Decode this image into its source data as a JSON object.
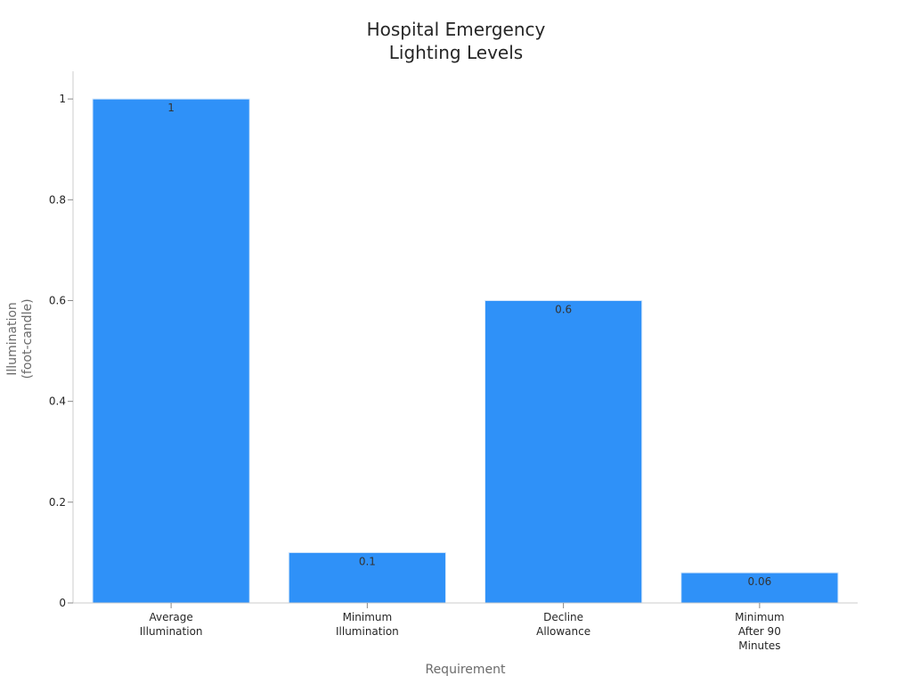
{
  "chart_data": {
    "type": "bar",
    "title_lines": [
      "Hospital Emergency",
      "Lighting Levels"
    ],
    "xlabel": "Requirement",
    "ylabel_lines": [
      "Illumination",
      "(foot-candle)"
    ],
    "categories": [
      [
        "Average",
        "Illumination"
      ],
      [
        "Minimum",
        "Illumination"
      ],
      [
        "Decline",
        "Allowance"
      ],
      [
        "Minimum",
        "After 90",
        "Minutes"
      ]
    ],
    "values": [
      1,
      0.1,
      0.6,
      0.06
    ],
    "data_labels": [
      "1",
      "0.1",
      "0.6",
      "0.06"
    ],
    "ylim": [
      0,
      1.055
    ],
    "yticks": [
      0,
      0.2,
      0.4,
      0.6,
      0.8,
      1
    ],
    "ytick_labels": [
      "0",
      "0.2",
      "0.4",
      "0.6",
      "0.8",
      "1"
    ],
    "grid": false,
    "legend": "none",
    "bar_color": "#2f91f8",
    "bar_edge_color": "#d8e9fb"
  }
}
